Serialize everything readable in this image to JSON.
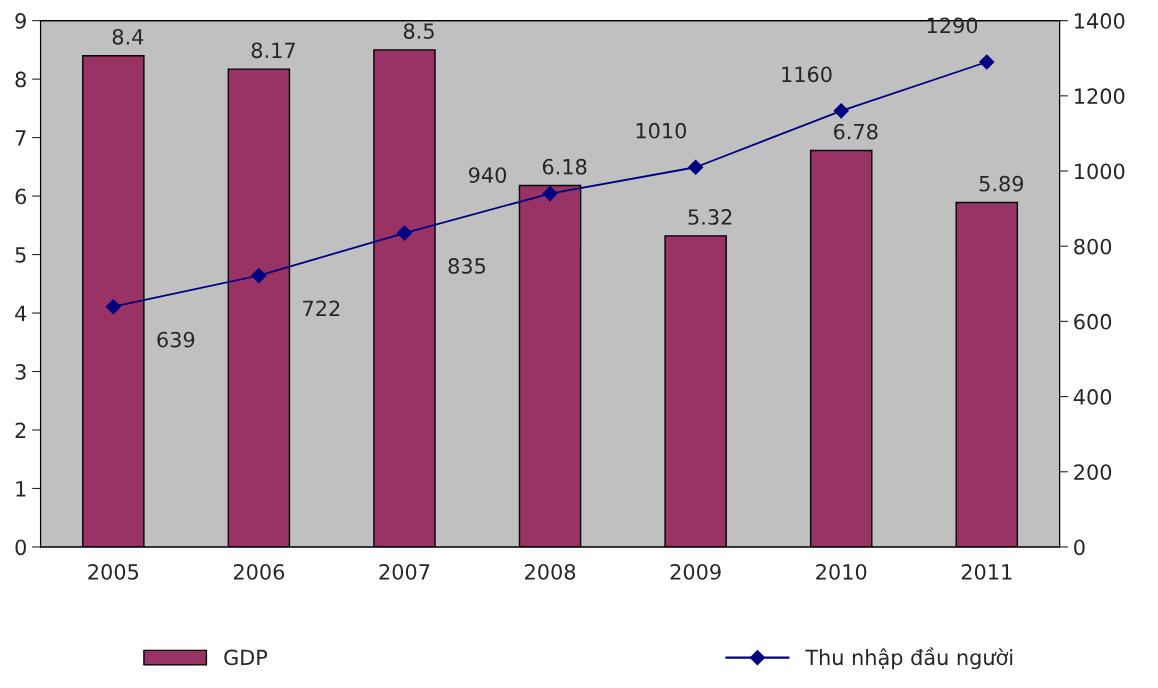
{
  "chart_data": {
    "type": "bar",
    "categories": [
      "2005",
      "2006",
      "2007",
      "2008",
      "2009",
      "2010",
      "2011"
    ],
    "series": [
      {
        "name": "GDP",
        "color": "#993366",
        "values": [
          8.4,
          8.17,
          8.5,
          6.18,
          5.32,
          6.78,
          5.89
        ]
      },
      {
        "name": "Thu nhập đầu người",
        "type": "line",
        "axis": "y2",
        "color": "#000080",
        "marker": "diamond",
        "values": [
          639,
          722,
          835,
          940,
          1010,
          1160,
          1290
        ]
      }
    ],
    "ylim": [
      0,
      9
    ],
    "yticks": [
      0,
      1,
      2,
      3,
      4,
      5,
      6,
      7,
      8,
      9
    ],
    "y2lim": [
      0,
      1400
    ],
    "y2ticks": [
      0,
      200,
      400,
      600,
      800,
      1000,
      1200,
      1400
    ],
    "data_labels": true,
    "grid": false,
    "legend": "bottom"
  }
}
